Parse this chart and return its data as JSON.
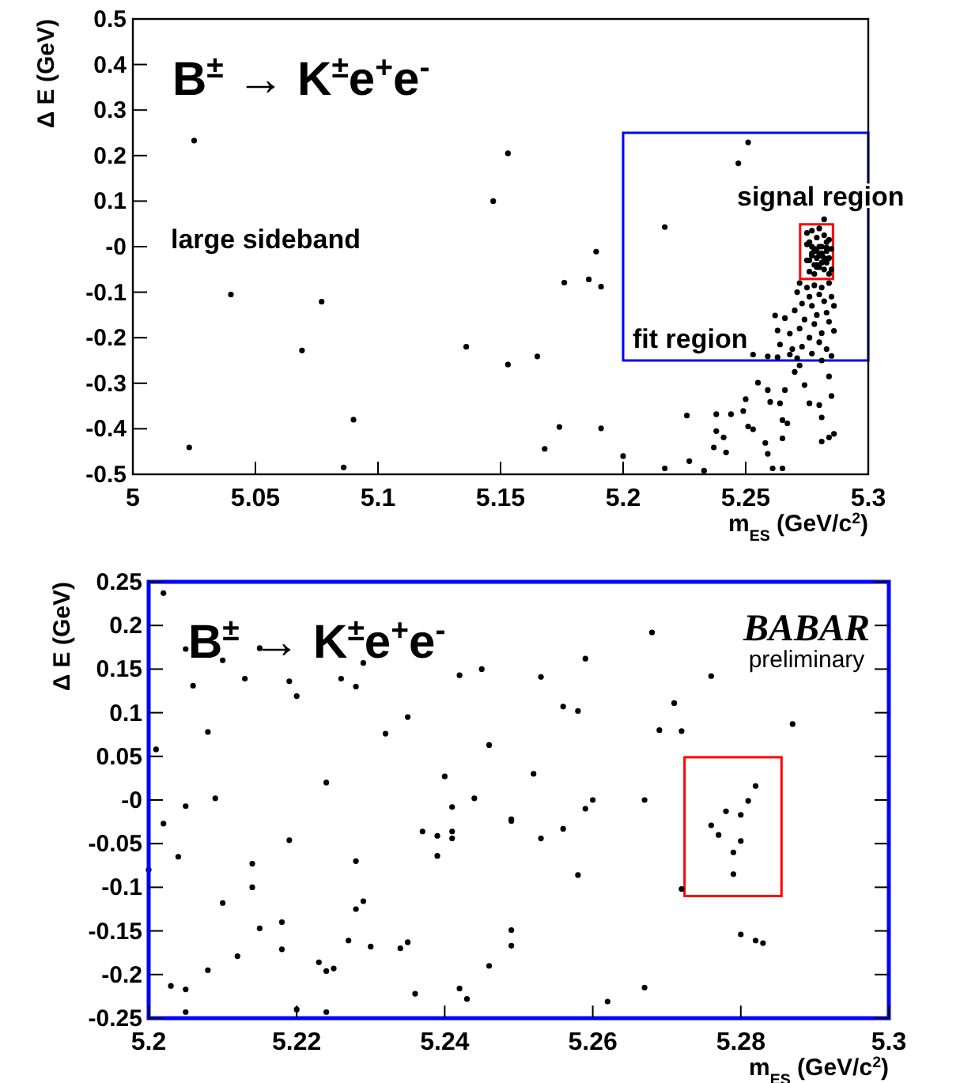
{
  "chart_data": [
    {
      "type": "scatter",
      "title": "B$^{±}$ → K$^{±}$e$^{+}$e$^{-}$",
      "xlabel": "m$_{ES}$ (GeV/c$^{2}$)",
      "ylabel": "Δ E (GeV)",
      "xlim": [
        5,
        5.3
      ],
      "ylim": [
        -0.5,
        0.5
      ],
      "xticks": [
        5,
        5.05,
        5.1,
        5.15,
        5.2,
        5.25,
        5.3
      ],
      "yticks": [
        -0.5,
        -0.4,
        -0.3,
        -0.2,
        -0.1,
        {
          "value": 0,
          "label": "-0"
        },
        0.1,
        0.2,
        0.3,
        0.4,
        0.5
      ],
      "marker": "circle",
      "grid": false,
      "annotations": [
        "large sideband",
        "signal region",
        "fit region"
      ],
      "series": [
        {
          "color": "#000000",
          "x": [
            5.025,
            5.023,
            5.04,
            5.077,
            5.069,
            5.09,
            5.086,
            5.147,
            5.153,
            5.136,
            5.153,
            5.165,
            5.176,
            5.186,
            5.191,
            5.189,
            5.174,
            5.191,
            5.168,
            5.2,
            5.217,
            5.217,
            5.227,
            5.233,
            5.226,
            5.251,
            5.247,
            5.238,
            5.238,
            5.237,
            5.241,
            5.242,
            5.244,
            5.249,
            5.25,
            5.251,
            5.253,
            5.255,
            5.259,
            5.26,
            5.258,
            5.259,
            5.261,
            5.264,
            5.266,
            5.265,
            5.267,
            5.265,
            5.265,
            5.27,
            5.272,
            5.274,
            5.276,
            5.28,
            5.281,
            5.281,
            5.284,
            5.285,
            5.286,
            5.284,
            5.262,
            5.263,
            5.266,
            5.264,
            5.268,
            5.263,
            5.268,
            5.269,
            5.253,
            5.259,
            5.272,
            5.275,
            5.278,
            5.281,
            5.284,
            5.271,
            5.276,
            5.28,
            5.285,
            5.273,
            5.277,
            5.282,
            5.286,
            5.27,
            5.279,
            5.283,
            5.274,
            5.278,
            5.284,
            5.272,
            5.281,
            5.286,
            5.276,
            5.28,
            5.273,
            5.283,
            5.277,
            5.285,
            5.271,
            5.281,
            5.275,
            5.276,
            5.277,
            5.278,
            5.279,
            5.28,
            5.281,
            5.282,
            5.283,
            5.284,
            5.275,
            5.277,
            5.279,
            5.281,
            5.283,
            5.285,
            5.276,
            5.278,
            5.28,
            5.282,
            5.284,
            5.275,
            5.277,
            5.279,
            5.281,
            5.283,
            5.285,
            5.276,
            5.278,
            5.28,
            5.282,
            5.284,
            5.277,
            5.279,
            5.281,
            5.283,
            5.278,
            5.28,
            5.282,
            5.279,
            5.281,
            5.28
          ],
          "values": [
            0.233,
            -0.441,
            -0.105,
            -0.121,
            -0.228,
            -0.38,
            -0.485,
            0.1,
            0.205,
            -0.22,
            -0.259,
            -0.241,
            -0.079,
            -0.072,
            -0.088,
            -0.011,
            -0.396,
            -0.399,
            -0.444,
            -0.46,
            0.043,
            -0.487,
            -0.471,
            -0.492,
            -0.371,
            0.229,
            0.183,
            -0.368,
            -0.405,
            -0.441,
            -0.419,
            -0.452,
            -0.368,
            -0.361,
            -0.335,
            -0.395,
            -0.401,
            -0.299,
            -0.315,
            -0.341,
            -0.431,
            -0.455,
            -0.487,
            -0.344,
            -0.315,
            -0.381,
            -0.388,
            -0.421,
            -0.487,
            -0.275,
            -0.261,
            -0.304,
            -0.344,
            -0.348,
            -0.375,
            -0.428,
            -0.419,
            -0.328,
            -0.411,
            -0.285,
            -0.151,
            -0.184,
            -0.157,
            -0.215,
            -0.237,
            -0.243,
            -0.191,
            -0.225,
            -0.237,
            -0.241,
            -0.08,
            -0.09,
            -0.085,
            -0.09,
            -0.08,
            -0.1,
            -0.11,
            -0.105,
            -0.11,
            -0.125,
            -0.13,
            -0.12,
            -0.13,
            -0.14,
            -0.15,
            -0.145,
            -0.16,
            -0.17,
            -0.165,
            -0.18,
            -0.19,
            -0.185,
            -0.2,
            -0.21,
            -0.22,
            -0.225,
            -0.235,
            -0.24,
            -0.245,
            -0.25,
            0.03,
            0.01,
            0.035,
            -0.005,
            0.02,
            0.04,
            0.0,
            0.025,
            -0.01,
            0.015,
            -0.03,
            -0.02,
            -0.04,
            -0.015,
            -0.035,
            -0.05,
            -0.055,
            -0.06,
            -0.045,
            -0.025,
            -0.06,
            0.005,
            0.0,
            -0.01,
            -0.02,
            0.01,
            -0.005,
            -0.03,
            -0.04,
            0.0,
            -0.05,
            -0.025,
            -0.015,
            -0.025,
            -0.035,
            -0.002,
            -0.01,
            -0.02,
            0.06,
            -0.045,
            -0.015,
            -0.02
          ]
        }
      ]
    },
    {
      "type": "scatter",
      "title": "B$^{±}$ → K$^{±}$e$^{+}$e$^{-}$",
      "xlabel": "m$_{ES}$ (GeV/c$^{2}$)",
      "ylabel": "Δ E (GeV)",
      "xlim": [
        5.2,
        5.3
      ],
      "ylim": [
        -0.25,
        0.25
      ],
      "xticks": [
        5.2,
        5.22,
        5.24,
        5.26,
        5.28,
        5.3
      ],
      "yticks": [
        -0.25,
        -0.2,
        -0.15,
        -0.1,
        -0.05,
        {
          "value": 0,
          "label": "-0"
        },
        0.05,
        0.1,
        0.15,
        0.2,
        0.25
      ],
      "marker": "circle",
      "grid": false,
      "annotations": [
        "BABAR",
        "preliminary"
      ],
      "series": [
        {
          "color": "#000000",
          "x": [
            5.202,
            5.205,
            5.206,
            5.201,
            5.205,
            5.202,
            5.204,
            5.2,
            5.203,
            5.205,
            5.205,
            5.208,
            5.209,
            5.21,
            5.21,
            5.208,
            5.212,
            5.213,
            5.214,
            5.214,
            5.215,
            5.215,
            5.219,
            5.22,
            5.219,
            5.218,
            5.218,
            5.22,
            5.224,
            5.223,
            5.224,
            5.225,
            5.224,
            5.226,
            5.228,
            5.229,
            5.228,
            5.228,
            5.229,
            5.227,
            5.23,
            5.232,
            5.235,
            5.234,
            5.235,
            5.236,
            5.237,
            5.239,
            5.239,
            5.24,
            5.241,
            5.241,
            5.241,
            5.242,
            5.242,
            5.243,
            5.244,
            5.245,
            5.246,
            5.246,
            5.253,
            5.252,
            5.249,
            5.249,
            5.253,
            5.256,
            5.256,
            5.258,
            5.259,
            5.259,
            5.26,
            5.258,
            5.249,
            5.249,
            5.262,
            5.267,
            5.267,
            5.268,
            5.269,
            5.271,
            5.272,
            5.272,
            5.276,
            5.276,
            5.277,
            5.278,
            5.279,
            5.279,
            5.28,
            5.28,
            5.281,
            5.282,
            5.28,
            5.282,
            5.283,
            5.287
          ],
          "values": [
            0.237,
            0.173,
            0.131,
            0.058,
            -0.007,
            -0.027,
            -0.065,
            -0.08,
            -0.213,
            -0.217,
            -0.243,
            0.078,
            0.002,
            0.16,
            -0.118,
            -0.195,
            -0.179,
            0.139,
            -0.073,
            -0.1,
            -0.147,
            0.174,
            0.136,
            0.119,
            -0.046,
            -0.14,
            -0.171,
            -0.24,
            0.02,
            -0.186,
            -0.196,
            -0.193,
            -0.243,
            0.139,
            0.13,
            0.157,
            -0.07,
            -0.125,
            -0.116,
            -0.161,
            -0.168,
            0.076,
            0.095,
            -0.17,
            -0.163,
            -0.222,
            -0.036,
            -0.041,
            -0.064,
            0.027,
            -0.008,
            -0.036,
            -0.044,
            0.143,
            -0.216,
            -0.228,
            0.002,
            0.15,
            0.063,
            -0.19,
            0.141,
            0.03,
            -0.022,
            -0.024,
            -0.044,
            -0.033,
            0.107,
            0.102,
            0.162,
            -0.01,
            0.0,
            -0.086,
            -0.149,
            -0.167,
            -0.231,
            -0.215,
            0.0,
            0.192,
            0.08,
            0.111,
            0.079,
            -0.102,
            0.142,
            -0.029,
            -0.04,
            -0.013,
            -0.06,
            -0.085,
            -0.047,
            -0.017,
            -0.001,
            0.016,
            -0.154,
            -0.161,
            -0.164,
            0.087
          ]
        }
      ]
    }
  ]
}
